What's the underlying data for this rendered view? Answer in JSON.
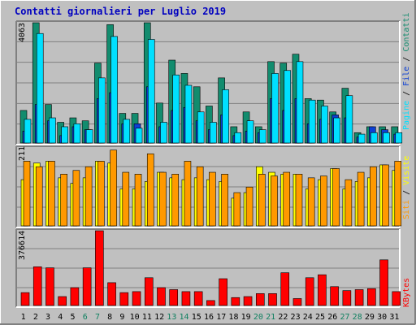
{
  "title": "Contatti giornalieri per Luglio 2019",
  "colors": {
    "background": "#c0c0c0",
    "frame_light": "#ffffff",
    "frame_dark": "#808080",
    "grid": "#808080",
    "title": "#0000c0",
    "pages": "#128c6e",
    "files": "#0c3fd4",
    "hits": "#00e0ff",
    "visits": "#ffff00",
    "sites": "#ff9900",
    "kbytes": "#ff0000",
    "weekend_label": "#108060",
    "weekday_label": "#000000"
  },
  "legend_traffic": {
    "pages": "Pagine",
    "files": "File",
    "hits": "Contatti",
    "sep": " / "
  },
  "legend_visits": {
    "sites": "Siti",
    "visits": "Visite",
    "sep": " / "
  },
  "legend_kbytes": {
    "kbytes": "KBytes"
  },
  "chart_data": [
    {
      "type": "bar",
      "panel": "traffic",
      "ylabel": "Pagine / File / Contatti",
      "max_label": "4063",
      "ylim": [
        0,
        4063
      ],
      "grid": true,
      "categories": [
        "1",
        "2",
        "3",
        "4",
        "5",
        "6",
        "7",
        "8",
        "9",
        "10",
        "11",
        "12",
        "13",
        "14",
        "15",
        "16",
        "17",
        "18",
        "19",
        "20",
        "21",
        "22",
        "23",
        "24",
        "25",
        "26",
        "27",
        "28",
        "29",
        "30",
        "31"
      ],
      "weekend_days": [
        "6",
        "7",
        "13",
        "14",
        "20",
        "21",
        "27",
        "28"
      ],
      "series": [
        {
          "name": "Pagine",
          "values": [
            1100,
            4063,
            1300,
            700,
            850,
            750,
            2700,
            4000,
            1000,
            1000,
            4063,
            1350,
            2800,
            2350,
            1900,
            1250,
            2200,
            550,
            1050,
            550,
            2750,
            2700,
            3000,
            1500,
            1450,
            1050,
            1850,
            350,
            550,
            550,
            550
          ]
        },
        {
          "name": "File",
          "values": [
            400,
            1300,
            750,
            250,
            550,
            450,
            1500,
            1700,
            650,
            650,
            1900,
            550,
            1100,
            1200,
            750,
            450,
            950,
            250,
            400,
            350,
            1500,
            1100,
            1500,
            650,
            800,
            950,
            850,
            200,
            550,
            450,
            300
          ]
        },
        {
          "name": "Contatti",
          "values": [
            800,
            3700,
            850,
            550,
            650,
            450,
            2200,
            3600,
            800,
            500,
            3500,
            700,
            2300,
            1950,
            1050,
            700,
            1800,
            350,
            750,
            450,
            2350,
            2450,
            2750,
            1450,
            1250,
            850,
            1600,
            300,
            350,
            350,
            350
          ]
        }
      ]
    },
    {
      "type": "bar",
      "panel": "visits",
      "ylabel": "Siti / Visite",
      "max_label": "211",
      "ylim": [
        0,
        211
      ],
      "grid": true,
      "categories": [
        "1",
        "2",
        "3",
        "4",
        "5",
        "6",
        "7",
        "8",
        "9",
        "10",
        "11",
        "12",
        "13",
        "14",
        "15",
        "16",
        "17",
        "18",
        "19",
        "20",
        "21",
        "22",
        "23",
        "24",
        "25",
        "26",
        "27",
        "28",
        "29",
        "30",
        "31"
      ],
      "series": [
        {
          "name": "Visite",
          "values": [
            125,
            170,
            175,
            130,
            115,
            130,
            175,
            170,
            100,
            100,
            120,
            145,
            130,
            125,
            130,
            125,
            120,
            75,
            90,
            160,
            145,
            140,
            140,
            100,
            125,
            155,
            100,
            120,
            130,
            165,
            150
          ]
        },
        {
          "name": "Siti",
          "values": [
            175,
            160,
            175,
            140,
            150,
            160,
            175,
            205,
            145,
            140,
            195,
            145,
            140,
            175,
            160,
            145,
            140,
            90,
            105,
            140,
            135,
            145,
            140,
            130,
            135,
            155,
            125,
            145,
            160,
            165,
            175
          ]
        }
      ]
    },
    {
      "type": "bar",
      "panel": "kbytes",
      "ylabel": "KBytes",
      "max_label": "376614",
      "ylim": [
        0,
        376614
      ],
      "grid": true,
      "categories": [
        "1",
        "2",
        "3",
        "4",
        "5",
        "6",
        "7",
        "8",
        "9",
        "10",
        "11",
        "12",
        "13",
        "14",
        "15",
        "16",
        "17",
        "18",
        "19",
        "20",
        "21",
        "22",
        "23",
        "24",
        "25",
        "26",
        "27",
        "28",
        "29",
        "30",
        "31"
      ],
      "series": [
        {
          "name": "KBytes",
          "values": [
            65000,
            195000,
            190000,
            45000,
            90000,
            190000,
            376614,
            115000,
            65000,
            70000,
            140000,
            90000,
            80000,
            70000,
            70000,
            25000,
            135000,
            40000,
            45000,
            60000,
            60000,
            165000,
            35000,
            140000,
            155000,
            95000,
            75000,
            80000,
            85000,
            230000,
            70000
          ]
        }
      ]
    }
  ]
}
